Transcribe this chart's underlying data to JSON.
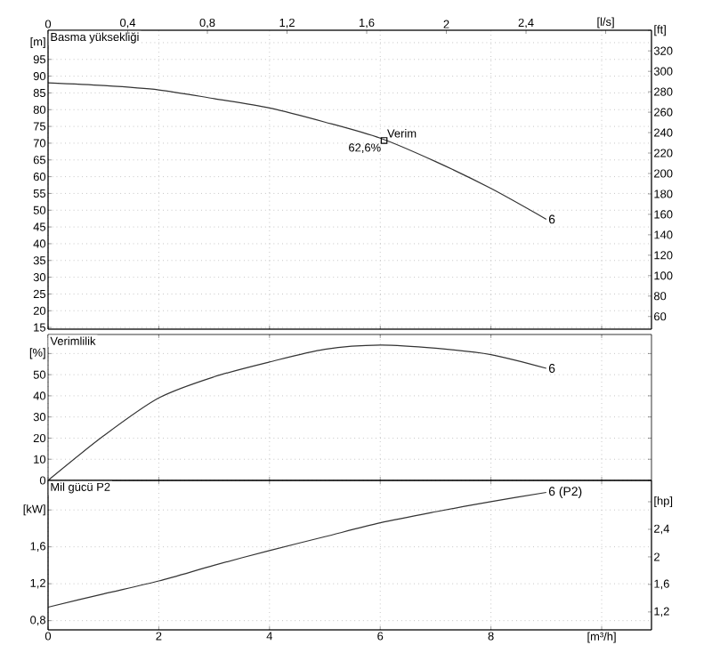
{
  "chart_data": [
    {
      "type": "line",
      "title": "Basma yüksekliği",
      "xlim": [
        0,
        10.9
      ],
      "xticks": [
        0,
        2,
        4,
        6,
        8,
        10
      ],
      "tick_labels": "y",
      "x2lim": [
        0,
        3.03
      ],
      "x2ticks": [
        0,
        {
          "value": 0.4,
          "label": "0,4"
        },
        {
          "value": 0.8,
          "label": "0,8"
        },
        {
          "value": 1.2,
          "label": "1,2"
        },
        {
          "value": 1.6,
          "label": "1,6"
        },
        2,
        {
          "value": 2.4,
          "label": "2,4"
        },
        {
          "value": 2.8,
          "label": "[l/s]"
        }
      ],
      "ylim": [
        14.5,
        103.7
      ],
      "yticks": [
        15,
        20,
        25,
        30,
        35,
        40,
        45,
        50,
        55,
        60,
        65,
        70,
        75,
        80,
        85,
        90,
        95,
        {
          "value": 100,
          "label": "[m]"
        }
      ],
      "y2lim": [
        47.6,
        340.2
      ],
      "y2ticks": [
        60,
        80,
        100,
        120,
        140,
        160,
        180,
        200,
        220,
        240,
        260,
        280,
        300,
        320,
        {
          "value": 340,
          "label": "[ft]"
        }
      ],
      "grid": true,
      "series": [
        {
          "name": "6",
          "color": "#333333",
          "x": [
            0,
            1,
            2,
            3,
            4,
            5,
            6,
            7,
            8,
            9
          ],
          "values": [
            88,
            87.2,
            85.9,
            83.3,
            80.5,
            76.3,
            71.5,
            64.5,
            56.5,
            47.3
          ]
        },
        {
          "type": "scatter",
          "marker": "square",
          "color": "#000000",
          "x": [
            6.07
          ],
          "values": [
            70.8
          ]
        }
      ],
      "annotations": [
        {
          "text": "Verim",
          "x": 6.07,
          "y": 70.8
        },
        {
          "text": "62,6%",
          "x": 6.07,
          "y": 70.8
        }
      ]
    },
    {
      "type": "line",
      "title": "Verimlilik",
      "xlim": [
        0,
        10.9
      ],
      "xticks": [
        0,
        2,
        4,
        6,
        8,
        10
      ],
      "tick_labels": "y",
      "ylim": [
        0,
        69
      ],
      "yticks": [
        0,
        10,
        20,
        30,
        40,
        50,
        {
          "value": 60,
          "label": "[%]"
        }
      ],
      "grid": true,
      "series": [
        {
          "name": "6",
          "color": "#333333",
          "x": [
            0,
            1,
            2,
            3,
            4,
            5,
            6,
            7,
            8,
            9
          ],
          "values": [
            0,
            21,
            39,
            49,
            56,
            62,
            64,
            62.5,
            59.5,
            53
          ]
        }
      ]
    },
    {
      "type": "line",
      "title": "Mil gücü P2",
      "xlim": [
        0,
        10.9
      ],
      "xticks": [
        0,
        2,
        4,
        6,
        8,
        {
          "value": 10,
          "label": "[m³/h]"
        }
      ],
      "ylim": [
        0.7,
        2.32
      ],
      "yticks": [
        {
          "value": 0.8,
          "label": "0,8"
        },
        {
          "value": 1.2,
          "label": "1,2"
        },
        {
          "value": 1.6,
          "label": "1,6"
        },
        {
          "value": 2.0,
          "label": "[kW]"
        }
      ],
      "y2lim": [
        0.94,
        3.11
      ],
      "y2ticks": [
        {
          "value": 1.2,
          "label": "1,2"
        },
        {
          "value": 1.6,
          "label": "1,6"
        },
        2,
        {
          "value": 2.4,
          "label": "2,4"
        },
        {
          "value": 2.8,
          "label": "[hp]"
        }
      ],
      "grid": true,
      "series": [
        {
          "name": "6 (P2)",
          "color": "#333333",
          "x": [
            0,
            1,
            2,
            3,
            4,
            5,
            6,
            7,
            8,
            9
          ],
          "values": [
            0.946,
            1.09,
            1.23,
            1.4,
            1.56,
            1.71,
            1.86,
            1.98,
            2.09,
            2.19
          ]
        }
      ]
    }
  ]
}
